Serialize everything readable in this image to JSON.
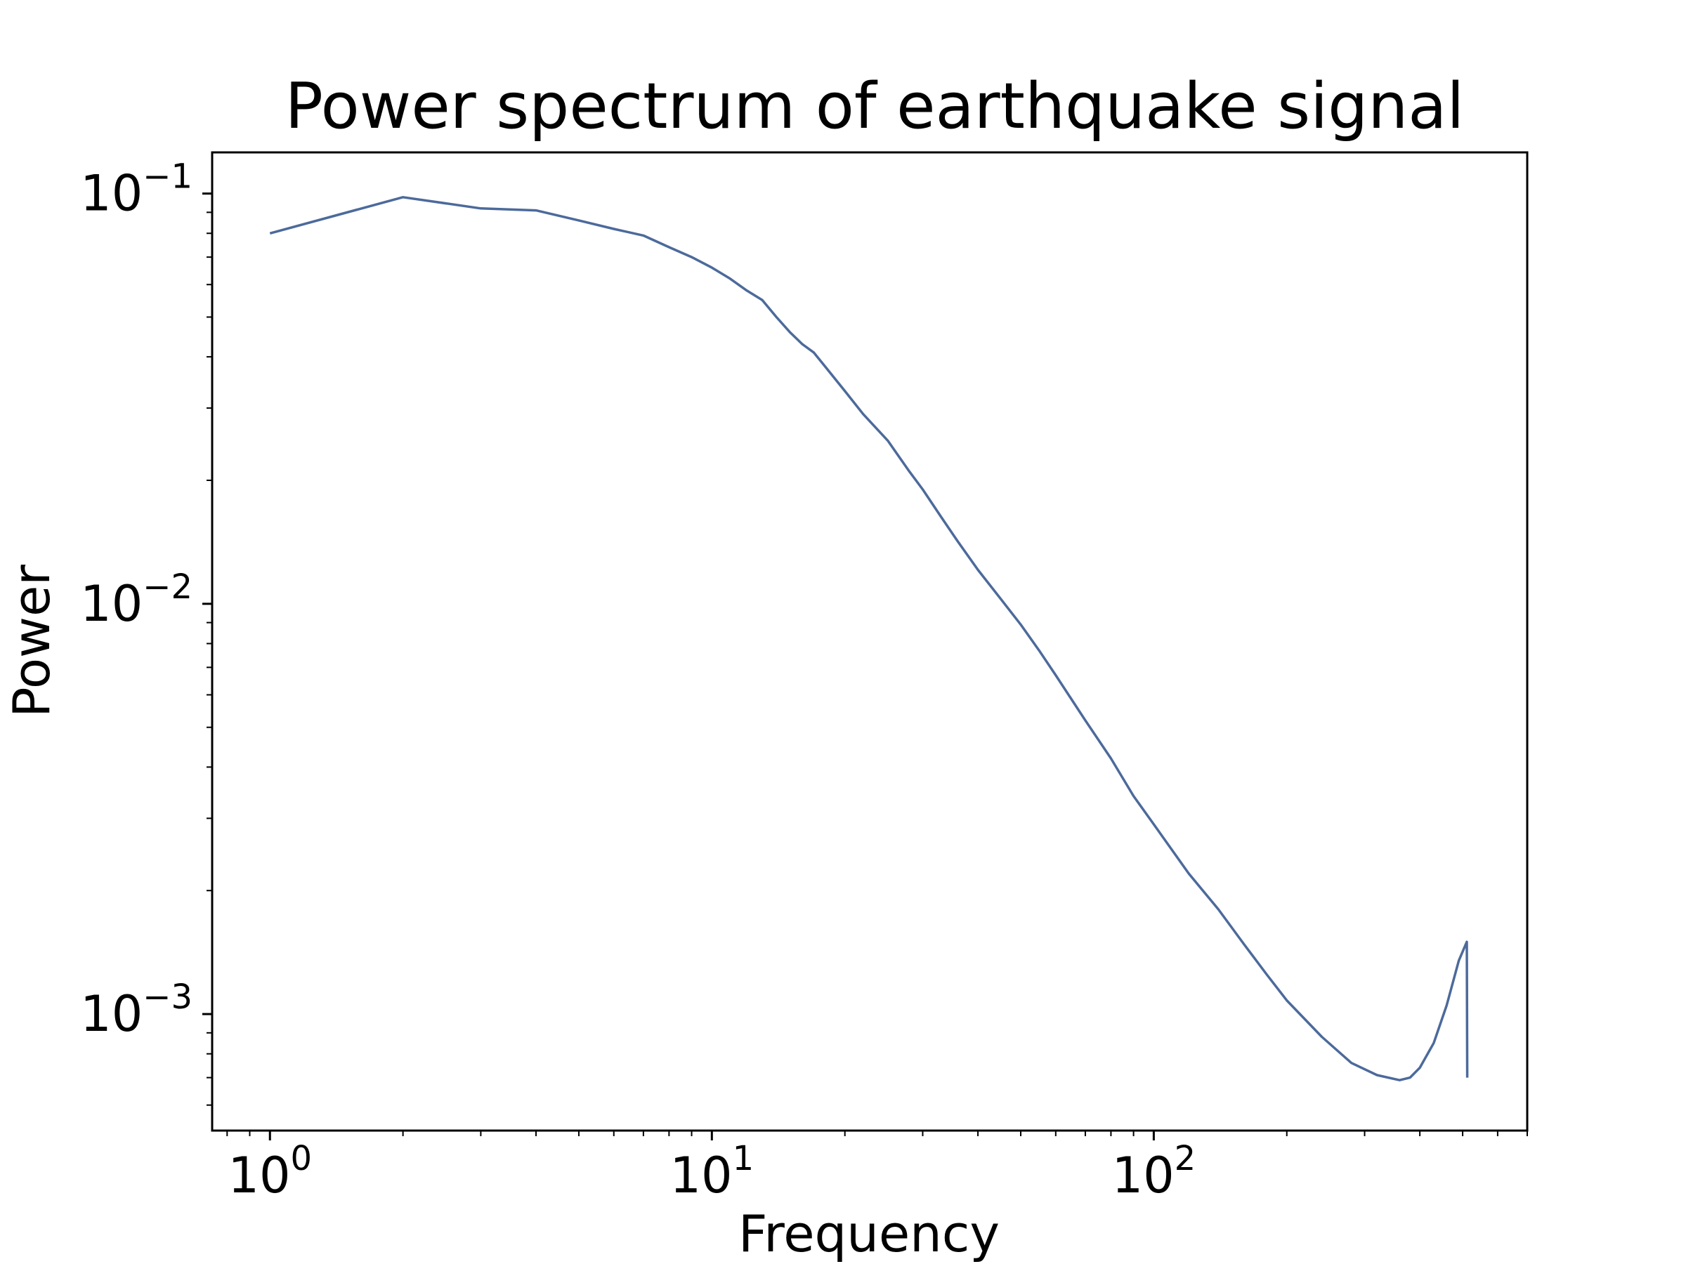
{
  "chart_data": {
    "type": "line",
    "title": "Power spectrum of earthquake signal",
    "xlabel": "Frequency",
    "ylabel": "Power",
    "xscale": "log",
    "yscale": "log",
    "xlim": [
      0.74,
      700
    ],
    "ylim": [
      0.00052,
      0.126
    ],
    "grid": false,
    "line_color": "#4c6a9b",
    "x_ticks": [
      {
        "value": 1,
        "base": "10",
        "exp": "0"
      },
      {
        "value": 10,
        "base": "10",
        "exp": "1"
      },
      {
        "value": 100,
        "base": "10",
        "exp": "2"
      }
    ],
    "y_ticks": [
      {
        "value": 0.001,
        "base": "10",
        "exp": "−3"
      },
      {
        "value": 0.01,
        "base": "10",
        "exp": "−2"
      },
      {
        "value": 0.1,
        "base": "10",
        "exp": "−1"
      }
    ],
    "series": [
      {
        "x": [
          1,
          2,
          3,
          4,
          5,
          6,
          7,
          8,
          9,
          10,
          11,
          12,
          13,
          14,
          15,
          16,
          17,
          18,
          20,
          22,
          25,
          28,
          30,
          33,
          36,
          40,
          45,
          50,
          55,
          60,
          70,
          80,
          90,
          100,
          120,
          140,
          160,
          180,
          200,
          240,
          280,
          320,
          360,
          380,
          400,
          430,
          460,
          490,
          511,
          512
        ],
        "y": [
          0.08,
          0.098,
          0.092,
          0.091,
          0.086,
          0.082,
          0.079,
          0.074,
          0.07,
          0.066,
          0.062,
          0.058,
          0.055,
          0.05,
          0.046,
          0.043,
          0.041,
          0.038,
          0.033,
          0.029,
          0.025,
          0.021,
          0.019,
          0.0163,
          0.0142,
          0.0121,
          0.0103,
          0.0089,
          0.0077,
          0.0067,
          0.0052,
          0.0042,
          0.0034,
          0.0029,
          0.0022,
          0.0018,
          0.00148,
          0.00125,
          0.00108,
          0.00088,
          0.00076,
          0.00071,
          0.00069,
          0.0007,
          0.00074,
          0.00085,
          0.00105,
          0.00135,
          0.0015,
          0.0007
        ]
      }
    ]
  }
}
